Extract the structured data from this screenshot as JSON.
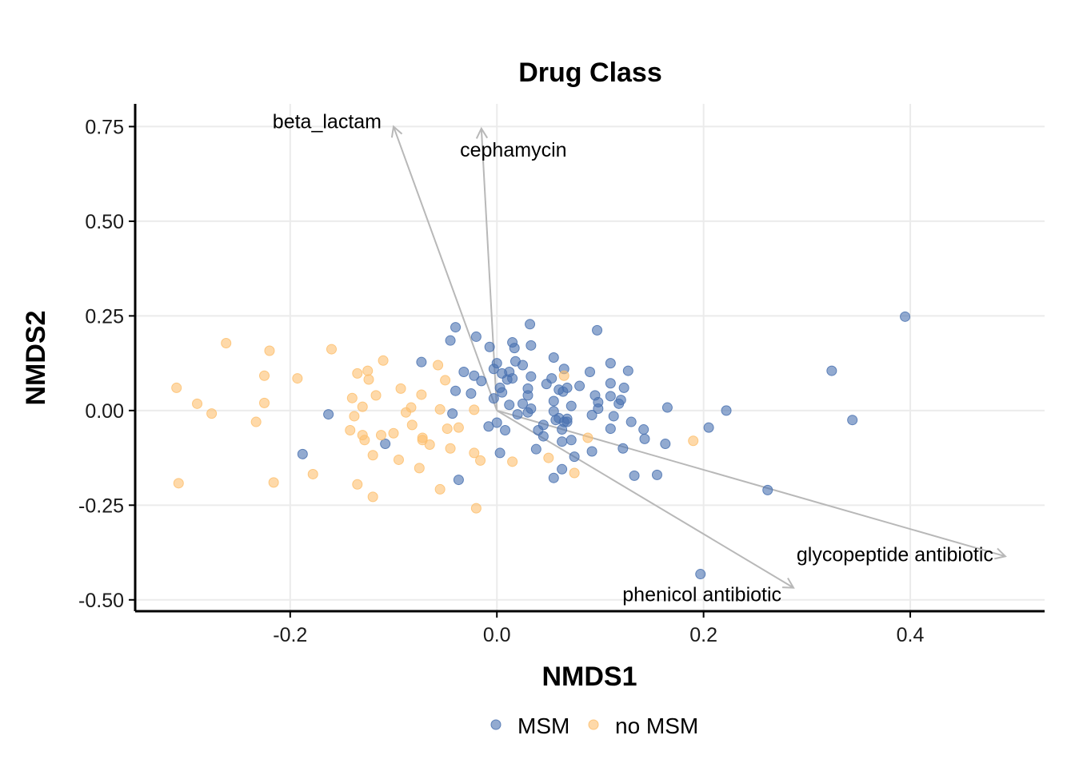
{
  "chart_data": {
    "type": "scatter",
    "title": "Drug Class",
    "xlabel": "NMDS1",
    "ylabel": "NMDS2",
    "xlim": [
      -0.35,
      0.53
    ],
    "ylim": [
      -0.53,
      0.81
    ],
    "x_ticks": [
      {
        "value": -0.2,
        "label": "-0.2"
      },
      {
        "value": 0.0,
        "label": "0.0"
      },
      {
        "value": 0.2,
        "label": "0.2"
      },
      {
        "value": 0.4,
        "label": "0.4"
      }
    ],
    "y_ticks": [
      {
        "value": -0.5,
        "label": "-0.50"
      },
      {
        "value": -0.25,
        "label": "-0.25"
      },
      {
        "value": 0.0,
        "label": "0.00"
      },
      {
        "value": 0.25,
        "label": "0.25"
      },
      {
        "value": 0.5,
        "label": "0.50"
      },
      {
        "value": 0.75,
        "label": "0.75"
      }
    ],
    "grid": true,
    "legend_position": "bottom",
    "colors": {
      "MSM": "#4a72b0",
      "no MSM": "#fdbf6f",
      "vector": "#b8b8b8"
    },
    "series": [
      {
        "name": "MSM",
        "points": [
          [
            -0.04,
            0.22
          ],
          [
            -0.045,
            0.185
          ],
          [
            -0.02,
            0.195
          ],
          [
            -0.007,
            0.168
          ],
          [
            0.032,
            0.228
          ],
          [
            0.097,
            0.212
          ],
          [
            -0.073,
            0.128
          ],
          [
            -0.032,
            0.102
          ],
          [
            -0.022,
            0.092
          ],
          [
            -0.015,
            0.078
          ],
          [
            0.0,
            0.125
          ],
          [
            0.015,
            0.18
          ],
          [
            0.017,
            0.165
          ],
          [
            0.033,
            0.172
          ],
          [
            0.025,
            0.12
          ],
          [
            0.018,
            0.13
          ],
          [
            0.005,
            0.098
          ],
          [
            0.01,
            0.082
          ],
          [
            0.003,
            0.06
          ],
          [
            -0.003,
            0.11
          ],
          [
            0.012,
            0.102
          ],
          [
            0.015,
            0.085
          ],
          [
            0.03,
            0.058
          ],
          [
            0.03,
            0.04
          ],
          [
            0.033,
            0.09
          ],
          [
            0.053,
            0.085
          ],
          [
            0.048,
            0.07
          ],
          [
            0.055,
            0.14
          ],
          [
            0.065,
            0.11
          ],
          [
            0.06,
            0.055
          ],
          [
            0.068,
            0.06
          ],
          [
            0.064,
            0.05
          ],
          [
            0.08,
            0.065
          ],
          [
            0.09,
            0.102
          ],
          [
            0.095,
            0.04
          ],
          [
            0.098,
            0.022
          ],
          [
            0.098,
            0.005
          ],
          [
            0.11,
            0.072
          ],
          [
            0.11,
            0.125
          ],
          [
            0.11,
            0.038
          ],
          [
            0.12,
            0.028
          ],
          [
            0.118,
            0.018
          ],
          [
            0.127,
            0.105
          ],
          [
            0.123,
            0.06
          ],
          [
            0.165,
            0.008
          ],
          [
            -0.04,
            0.052
          ],
          [
            -0.025,
            0.045
          ],
          [
            -0.003,
            0.032
          ],
          [
            -0.043,
            -0.008
          ],
          [
            0.005,
            0.048
          ],
          [
            0.012,
            0.015
          ],
          [
            0.025,
            0.018
          ],
          [
            0.03,
            -0.005
          ],
          [
            0.033,
            0.005
          ],
          [
            0.02,
            -0.01
          ],
          [
            0.055,
            0.025
          ],
          [
            0.072,
            0.012
          ],
          [
            0.092,
            -0.012
          ],
          [
            0.113,
            -0.015
          ],
          [
            0.055,
            -0.002
          ],
          [
            0.057,
            -0.025
          ],
          [
            0.06,
            -0.02
          ],
          [
            0.065,
            -0.03
          ],
          [
            0.068,
            -0.022
          ],
          [
            0.068,
            -0.03
          ],
          [
            0.045,
            -0.038
          ],
          [
            -0.008,
            -0.042
          ],
          [
            0.0,
            -0.032
          ],
          [
            0.008,
            -0.052
          ],
          [
            0.04,
            -0.052
          ],
          [
            0.045,
            -0.068
          ],
          [
            0.063,
            -0.05
          ],
          [
            0.072,
            -0.078
          ],
          [
            0.063,
            -0.082
          ],
          [
            0.038,
            -0.102
          ],
          [
            0.11,
            -0.048
          ],
          [
            0.13,
            -0.03
          ],
          [
            0.142,
            -0.05
          ],
          [
            0.143,
            -0.075
          ],
          [
            0.163,
            -0.088
          ],
          [
            0.122,
            -0.1
          ],
          [
            0.092,
            -0.108
          ],
          [
            0.075,
            -0.122
          ],
          [
            0.063,
            -0.155
          ],
          [
            0.055,
            -0.178
          ],
          [
            0.133,
            -0.172
          ],
          [
            0.155,
            -0.17
          ],
          [
            0.205,
            -0.045
          ],
          [
            0.222,
            0.0
          ],
          [
            0.262,
            -0.21
          ],
          [
            0.197,
            -0.432
          ],
          [
            0.324,
            0.105
          ],
          [
            0.344,
            -0.025
          ],
          [
            0.395,
            0.248
          ],
          [
            -0.163,
            -0.01
          ],
          [
            -0.188,
            -0.115
          ],
          [
            -0.108,
            -0.088
          ],
          [
            0.003,
            -0.112
          ],
          [
            -0.037,
            -0.183
          ]
        ]
      },
      {
        "name": "no MSM",
        "points": [
          [
            -0.262,
            0.178
          ],
          [
            -0.22,
            0.158
          ],
          [
            -0.225,
            0.092
          ],
          [
            -0.193,
            0.085
          ],
          [
            -0.16,
            0.162
          ],
          [
            -0.11,
            0.132
          ],
          [
            -0.135,
            0.098
          ],
          [
            -0.125,
            0.105
          ],
          [
            -0.124,
            0.082
          ],
          [
            -0.31,
            0.06
          ],
          [
            -0.29,
            0.018
          ],
          [
            -0.276,
            -0.008
          ],
          [
            -0.225,
            0.02
          ],
          [
            -0.233,
            -0.03
          ],
          [
            -0.14,
            0.033
          ],
          [
            -0.117,
            0.04
          ],
          [
            -0.13,
            0.01
          ],
          [
            -0.138,
            -0.015
          ],
          [
            -0.142,
            -0.052
          ],
          [
            -0.13,
            -0.065
          ],
          [
            -0.128,
            -0.078
          ],
          [
            -0.112,
            -0.065
          ],
          [
            -0.1,
            -0.06
          ],
          [
            -0.093,
            0.058
          ],
          [
            -0.088,
            -0.005
          ],
          [
            -0.083,
            0.008
          ],
          [
            -0.073,
            0.042
          ],
          [
            -0.057,
            0.12
          ],
          [
            -0.05,
            0.08
          ],
          [
            -0.055,
            0.003
          ],
          [
            -0.022,
            0.002
          ],
          [
            -0.082,
            -0.038
          ],
          [
            -0.072,
            -0.072
          ],
          [
            -0.072,
            -0.078
          ],
          [
            -0.065,
            -0.09
          ],
          [
            -0.048,
            -0.048
          ],
          [
            -0.037,
            -0.045
          ],
          [
            -0.045,
            -0.1
          ],
          [
            -0.12,
            -0.118
          ],
          [
            -0.095,
            -0.13
          ],
          [
            -0.075,
            -0.152
          ],
          [
            -0.022,
            -0.112
          ],
          [
            -0.016,
            -0.132
          ],
          [
            0.015,
            -0.135
          ],
          [
            0.05,
            -0.125
          ],
          [
            0.065,
            0.092
          ],
          [
            0.088,
            -0.072
          ],
          [
            0.075,
            -0.165
          ],
          [
            0.19,
            -0.08
          ],
          [
            -0.308,
            -0.192
          ],
          [
            -0.216,
            -0.19
          ],
          [
            -0.178,
            -0.168
          ],
          [
            -0.135,
            -0.195
          ],
          [
            -0.12,
            -0.228
          ],
          [
            -0.055,
            -0.208
          ],
          [
            -0.02,
            -0.258
          ]
        ]
      }
    ],
    "vectors": [
      {
        "label": "beta_lactam",
        "x": -0.1,
        "y": 0.75
      },
      {
        "label": "cephamycin",
        "x": -0.015,
        "y": 0.745
      },
      {
        "label": "glycopeptide antibiotic",
        "x": 0.492,
        "y": -0.385
      },
      {
        "label": "phenicol antibiotic",
        "x": 0.287,
        "y": -0.468
      }
    ]
  }
}
